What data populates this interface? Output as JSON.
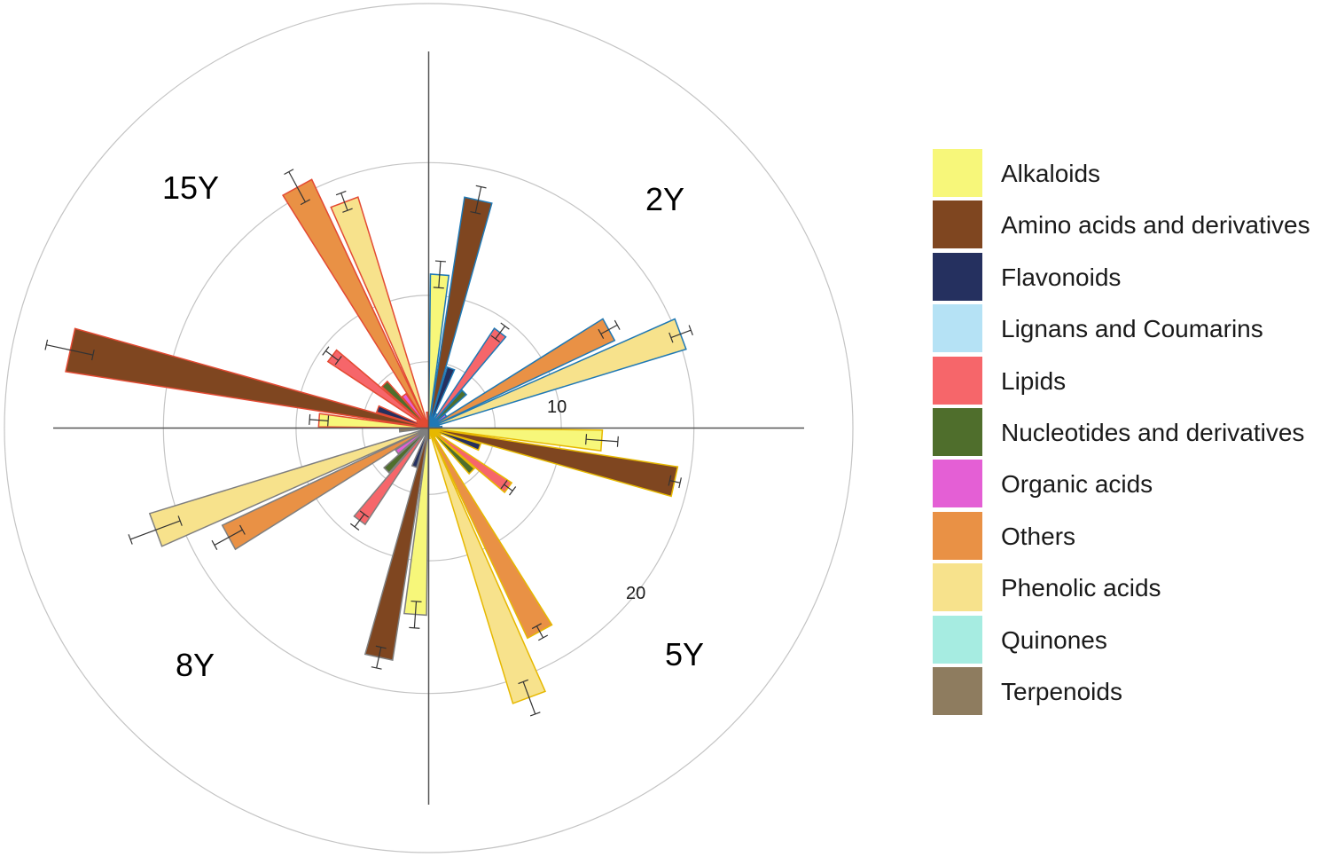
{
  "chart_data": {
    "type": "polar-bar",
    "title": "",
    "radial_ticks": [
      10,
      20
    ],
    "radial_max": 32,
    "groups": [
      "2Y",
      "5Y",
      "8Y",
      "15Y"
    ],
    "group_border_colors": {
      "2Y": "#1f78b4",
      "5Y": "#e6b800",
      "8Y": "#7f7f7f",
      "15Y": "#e34a33"
    },
    "categories": [
      "Alkaloids",
      "Amino acids and derivatives",
      "Flavonoids",
      "Lignans and Coumarins",
      "Lipids",
      "Nucleotides and derivatives",
      "Organic acids",
      "Others",
      "Phenolic acids",
      "Quinones",
      "Terpenoids"
    ],
    "colors": [
      "#f7f77a",
      "#7f4620",
      "#25305f",
      "#b5e2f5",
      "#f6666a",
      "#4f6e2c",
      "#e45fd5",
      "#e99145",
      "#f7e28c",
      "#a6ece1",
      "#8e7c5f"
    ],
    "series": [
      {
        "name": "2Y",
        "values": [
          11.6,
          17.6,
          4.8,
          1.2,
          9.0,
          3.8,
          1.6,
          15.5,
          20.3,
          0.8,
          1.0
        ],
        "errors": [
          1.0,
          1.0,
          0.3,
          0.2,
          0.6,
          0.3,
          0.2,
          0.7,
          0.8,
          0.2,
          0.2
        ]
      },
      {
        "name": "5Y",
        "values": [
          13.1,
          19.0,
          4.1,
          1.0,
          7.5,
          4.6,
          0.8,
          17.5,
          21.7,
          0.5,
          0.8
        ],
        "errors": [
          1.2,
          0.4,
          0.3,
          0.2,
          0.4,
          0.3,
          0.2,
          0.5,
          1.3,
          0.2,
          0.2
        ]
      },
      {
        "name": "8Y",
        "values": [
          14.1,
          17.7,
          3.1,
          0.6,
          8.7,
          4.5,
          3.0,
          17.2,
          22.0,
          0.6,
          2.2
        ],
        "errors": [
          1.0,
          0.8,
          0.3,
          0.2,
          0.6,
          0.4,
          0.3,
          1.2,
          2.0,
          0.2,
          0.3
        ]
      },
      {
        "name": "15Y",
        "values": [
          8.3,
          27.7,
          4.1,
          1.0,
          9.1,
          4.7,
          3.1,
          20.7,
          18.2,
          0.6,
          1.2
        ],
        "errors": [
          0.7,
          1.8,
          0.3,
          0.2,
          0.6,
          0.4,
          0.3,
          1.3,
          0.7,
          0.2,
          0.2
        ]
      }
    ],
    "legend_position": "right"
  }
}
